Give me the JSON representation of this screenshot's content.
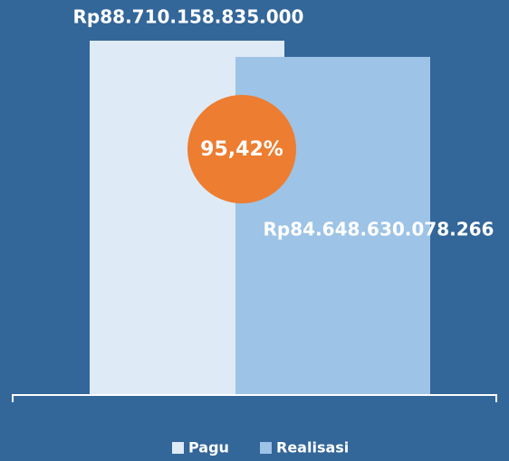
{
  "chart_data": {
    "type": "bar",
    "background": "#336699",
    "series": [
      {
        "name": "Pagu",
        "color": "#deeaf6",
        "values": [
          88710158835000
        ],
        "value_labels": [
          "Rp88.710.158.835.000"
        ]
      },
      {
        "name": "Realisasi",
        "color": "#9dc3e6",
        "values": [
          84648630078266
        ],
        "value_labels": [
          "Rp84.648.630.078.266"
        ]
      }
    ],
    "annotation": {
      "text": "95,42%",
      "color": "#ed7d31"
    },
    "legend": "bottom"
  }
}
